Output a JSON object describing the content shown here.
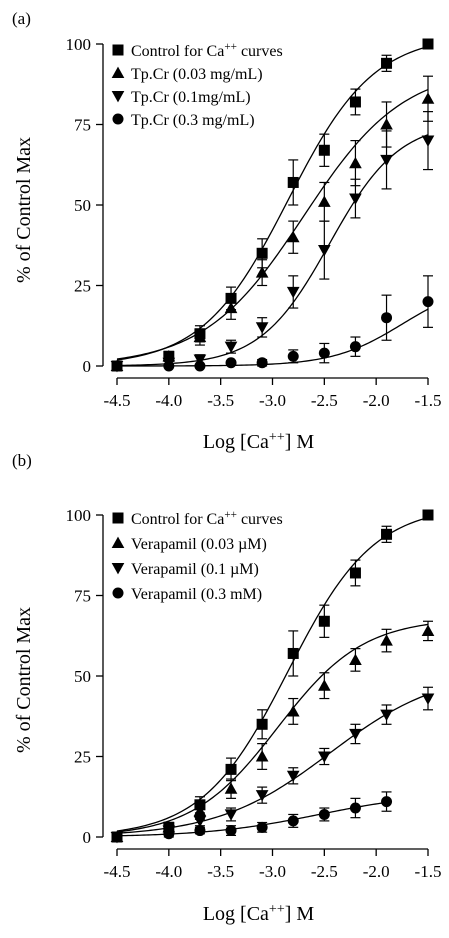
{
  "chart_data": [
    {
      "panel_label": "(a)",
      "type": "line",
      "xlabel": "Log [Ca++] M",
      "ylabel": "% of Control Max",
      "xlim": [
        -4.5,
        -1.5
      ],
      "ylim": [
        0,
        100
      ],
      "x_ticks": [
        -4.5,
        -4.0,
        -3.5,
        -3.0,
        -2.5,
        -2.0,
        -1.5
      ],
      "x_tick_labels": [
        "-4.5",
        "-4.0",
        "-3.5",
        "-3.0",
        "-2.5",
        "-2.0",
        "-1.5"
      ],
      "y_ticks": [
        0,
        25,
        50,
        75,
        100
      ],
      "y_tick_labels": [
        "0",
        "25",
        "50",
        "75",
        "100"
      ],
      "legend_position": "top-left",
      "series": [
        {
          "name": "Control for Ca++ curves",
          "marker": "square",
          "x": [
            -4.5,
            -4.0,
            -3.7,
            -3.4,
            -3.1,
            -2.8,
            -2.5,
            -2.2,
            -1.9,
            -1.5
          ],
          "y": [
            0,
            3,
            10,
            21,
            35,
            57,
            67,
            82,
            94,
            100
          ],
          "err": [
            0,
            1.5,
            2.5,
            3.5,
            4.5,
            7,
            5,
            4,
            2.5,
            0
          ],
          "fit": {
            "bottom": 0,
            "top": 103,
            "logec50": -2.85,
            "hill": 1.05
          }
        },
        {
          "name": "Tp.Cr (0.03 mg/mL)",
          "marker": "triangle-up",
          "x": [
            -4.5,
            -4.0,
            -3.7,
            -3.4,
            -3.1,
            -2.8,
            -2.5,
            -2.2,
            -1.9,
            -1.5
          ],
          "y": [
            0,
            3,
            9,
            18,
            29,
            40,
            51,
            63,
            75,
            83
          ],
          "err": [
            0,
            1.5,
            2.5,
            3.5,
            4,
            5,
            6,
            7,
            7,
            7
          ],
          "fit": {
            "bottom": 0,
            "top": 93,
            "logec50": -2.7,
            "hill": 0.9
          }
        },
        {
          "name": "Tp.Cr (0.1mg/mL)",
          "marker": "triangle-down",
          "x": [
            -4.5,
            -4.0,
            -3.7,
            -3.4,
            -3.1,
            -2.8,
            -2.5,
            -2.2,
            -1.9,
            -1.5
          ],
          "y": [
            0,
            1,
            2,
            6,
            12,
            23,
            36,
            52,
            64,
            70
          ],
          "err": [
            0,
            1,
            1.5,
            2,
            3,
            5,
            9,
            6,
            9,
            9
          ],
          "fit": {
            "bottom": 0,
            "top": 76,
            "logec50": -2.45,
            "hill": 1.3
          }
        },
        {
          "name": "Tp.Cr (0.3 mg/mL)",
          "marker": "circle",
          "x": [
            -4.5,
            -4.0,
            -3.7,
            -3.4,
            -3.1,
            -2.8,
            -2.5,
            -2.2,
            -1.9,
            -1.5
          ],
          "y": [
            0,
            0,
            0,
            1,
            1,
            3,
            4,
            6,
            15,
            20
          ],
          "err": [
            0,
            0,
            0,
            0,
            1,
            2,
            3,
            3,
            7,
            8
          ],
          "fit": {
            "bottom": 0,
            "top": 26,
            "logec50": -1.75,
            "hill": 1.3
          }
        }
      ]
    },
    {
      "panel_label": "(b)",
      "type": "line",
      "xlabel": "Log [Ca++] M",
      "ylabel": "% of Control Max",
      "xlim": [
        -4.5,
        -1.5
      ],
      "ylim": [
        0,
        100
      ],
      "x_ticks": [
        -4.5,
        -4.0,
        -3.5,
        -3.0,
        -2.5,
        -2.0,
        -1.5
      ],
      "x_tick_labels": [
        "-4.5",
        "-4.0",
        "-3.5",
        "-3.0",
        "-2.5",
        "-2.0",
        "-1.5"
      ],
      "y_ticks": [
        0,
        25,
        50,
        75,
        100
      ],
      "y_tick_labels": [
        "0",
        "25",
        "50",
        "75",
        "100"
      ],
      "legend_position": "top-left",
      "series": [
        {
          "name": "Control for Ca++ curves",
          "marker": "square",
          "x": [
            -4.5,
            -4.0,
            -3.7,
            -3.4,
            -3.1,
            -2.8,
            -2.5,
            -2.2,
            -1.9,
            -1.5
          ],
          "y": [
            0,
            3,
            10,
            21,
            35,
            57,
            67,
            82,
            94,
            100
          ],
          "err": [
            0,
            1.5,
            2.5,
            3.5,
            4.5,
            7,
            5,
            4,
            2.5,
            0
          ],
          "fit": {
            "bottom": 0,
            "top": 103,
            "logec50": -2.85,
            "hill": 1.05
          }
        },
        {
          "name": "Verapamil (0.03 µM)",
          "marker": "triangle-up",
          "x": [
            -4.5,
            -4.0,
            -3.7,
            -3.4,
            -3.1,
            -2.8,
            -2.5,
            -2.2,
            -1.9,
            -1.5
          ],
          "y": [
            0,
            3,
            8,
            15,
            25,
            39,
            47,
            55,
            61,
            64
          ],
          "err": [
            0,
            1.5,
            2.5,
            3,
            4,
            4,
            4,
            3.5,
            3.5,
            3
          ],
          "fit": {
            "bottom": 0,
            "top": 68,
            "logec50": -2.95,
            "hill": 1.05
          }
        },
        {
          "name": "Verapamil (0.1 µM)",
          "marker": "triangle-down",
          "x": [
            -4.5,
            -4.0,
            -3.7,
            -3.4,
            -3.1,
            -2.8,
            -2.5,
            -2.2,
            -1.9,
            -1.5
          ],
          "y": [
            0,
            2,
            5,
            7,
            13,
            19,
            25,
            32,
            38,
            43
          ],
          "err": [
            0,
            1,
            1.5,
            2,
            2.5,
            2.5,
            2.5,
            3,
            3,
            3.5
          ],
          "fit": {
            "bottom": 0,
            "top": 52,
            "logec50": -2.45,
            "hill": 0.8
          }
        },
        {
          "name": "Verapamil (0.3 mM)",
          "marker": "circle",
          "x": [
            -4.5,
            -4.0,
            -3.7,
            -3.4,
            -3.1,
            -2.8,
            -2.5,
            -2.2,
            -1.9
          ],
          "y": [
            0,
            1,
            2,
            2,
            3,
            5,
            7,
            9,
            11
          ],
          "err": [
            0,
            1,
            1,
            1.5,
            1.5,
            2,
            2,
            3,
            3
          ],
          "fit": {
            "bottom": 0,
            "top": 14,
            "logec50": -2.55,
            "hill": 0.8
          }
        }
      ]
    }
  ]
}
